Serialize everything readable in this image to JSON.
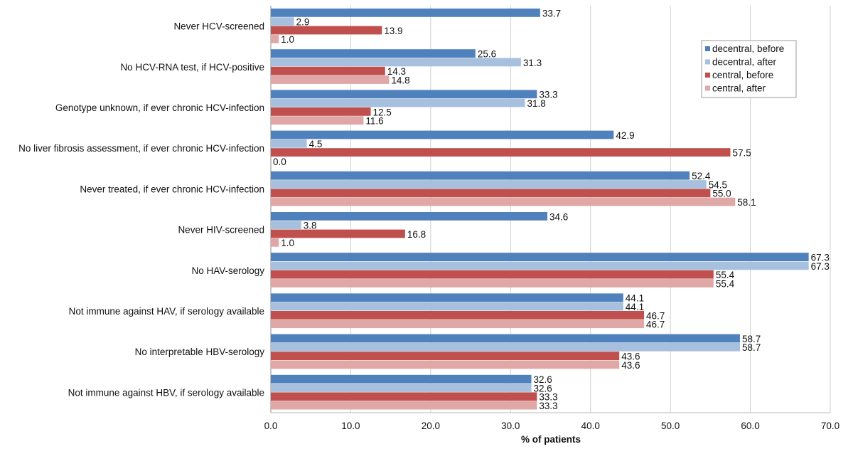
{
  "chart_data": {
    "type": "bar",
    "orientation": "horizontal",
    "title": "",
    "xlabel": "% of patients",
    "ylabel": "",
    "xlim": [
      0,
      70
    ],
    "xticks": [
      0,
      10,
      20,
      30,
      40,
      50,
      60,
      70
    ],
    "xtick_labels": [
      "0.0",
      "10.0",
      "20.0",
      "30.0",
      "40.0",
      "50.0",
      "60.0",
      "70.0"
    ],
    "grid": "vertical",
    "legend_position": "top-right",
    "categories": [
      "Never HCV-screened",
      "No HCV-RNA test, if HCV-positive",
      "Genotype unknown, if ever chronic HCV-infection",
      "No liver fibrosis assessment, if ever chronic HCV-infection",
      "Never treated, if ever chronic HCV-infection",
      "Never HIV-screened",
      "No HAV-serology",
      "Not immune against HAV, if serology available",
      "No interpretable HBV-serology",
      "Not immune against HBV, if serology available"
    ],
    "series": [
      {
        "name": "decentral, before",
        "color": "#4f81bd",
        "values": [
          33.7,
          25.6,
          33.3,
          42.9,
          52.4,
          34.6,
          67.3,
          44.1,
          58.7,
          32.6
        ]
      },
      {
        "name": "decentral, after",
        "color": "#a7c0de",
        "values": [
          2.9,
          31.3,
          31.8,
          4.5,
          54.5,
          3.8,
          67.3,
          44.1,
          58.7,
          32.6
        ]
      },
      {
        "name": "central, before",
        "color": "#c0504d",
        "values": [
          13.9,
          14.3,
          12.5,
          57.5,
          55.0,
          16.8,
          55.4,
          46.7,
          43.6,
          33.3
        ]
      },
      {
        "name": "central, after",
        "color": "#dfa7a6",
        "values": [
          1.0,
          14.8,
          11.6,
          0.0,
          58.1,
          1.0,
          55.4,
          46.7,
          43.6,
          33.3
        ]
      }
    ]
  }
}
